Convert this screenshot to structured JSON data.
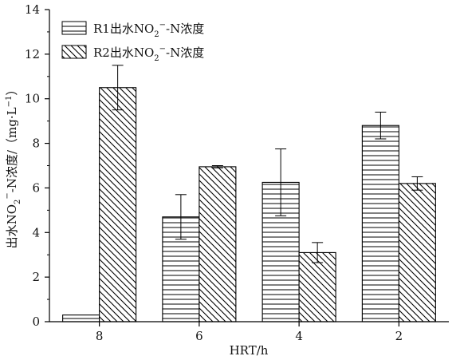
{
  "chart_data": {
    "type": "bar",
    "categories": [
      "8",
      "6",
      "4",
      "2"
    ],
    "series": [
      {
        "name": "R1出水NO2−-N浓度",
        "legend_parts": {
          "pre": "R1出水NO",
          "sub": "2",
          "sup": "−",
          "post": "-N浓度"
        },
        "pattern": "horizontal-lines",
        "values": [
          0.3,
          4.7,
          6.25,
          8.8
        ],
        "errors": [
          0.0,
          1.0,
          1.5,
          0.6
        ]
      },
      {
        "name": "R2出水NO2−-N浓度",
        "legend_parts": {
          "pre": "R2出水NO",
          "sub": "2",
          "sup": "−",
          "post": "-N浓度"
        },
        "pattern": "diagonal-lines",
        "values": [
          10.5,
          6.95,
          3.1,
          6.2
        ],
        "errors": [
          1.0,
          0.05,
          0.45,
          0.3
        ]
      }
    ],
    "xlabel": "HRT/h",
    "ylabel": "出水NO2−-N浓度/（mg·L−1）",
    "ylabel_parts": {
      "a": "出水NO",
      "sub": "2",
      "sup1": "−",
      "b": "-N浓度/（mg·L",
      "sup2": "−1",
      "c": "）"
    },
    "ylim": [
      0,
      14
    ],
    "yticks": [
      "0",
      "2",
      "4",
      "6",
      "8",
      "10",
      "12",
      "14"
    ],
    "grid": false,
    "legend_position": "top-left"
  }
}
